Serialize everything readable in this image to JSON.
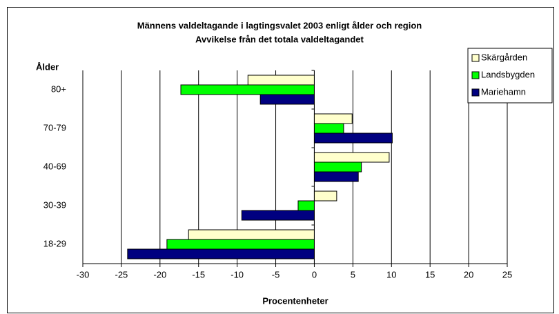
{
  "chart_data": {
    "type": "hbar",
    "title": "Männens valdeltagande i lagtingsvalet 2003 enligt ålder och region",
    "subtitle": "Avvikelse från det totala valdeltagandet",
    "x_label": "Procentenheter",
    "y_label": "Ålder",
    "categories": [
      "80+",
      "70-79",
      "40-69",
      "30-39",
      "18-29"
    ],
    "series": [
      {
        "name": "Skärgården",
        "color": "#ffffcc",
        "values": [
          -8.6,
          4.9,
          9.7,
          2.9,
          -16.3
        ]
      },
      {
        "name": "Landsbygden",
        "color": "#00ff00",
        "values": [
          -17.3,
          3.8,
          6.1,
          -2.1,
          -19.1
        ]
      },
      {
        "name": "Mariehamn",
        "color": "#000080",
        "values": [
          -7.0,
          10.1,
          5.7,
          -9.4,
          -24.2
        ]
      }
    ],
    "xlim": [
      -30,
      25
    ],
    "xticks": [
      -30,
      -25,
      -20,
      -15,
      -10,
      -5,
      0,
      5,
      10,
      15,
      20,
      25
    ],
    "grid": true,
    "legend": "top-right"
  }
}
